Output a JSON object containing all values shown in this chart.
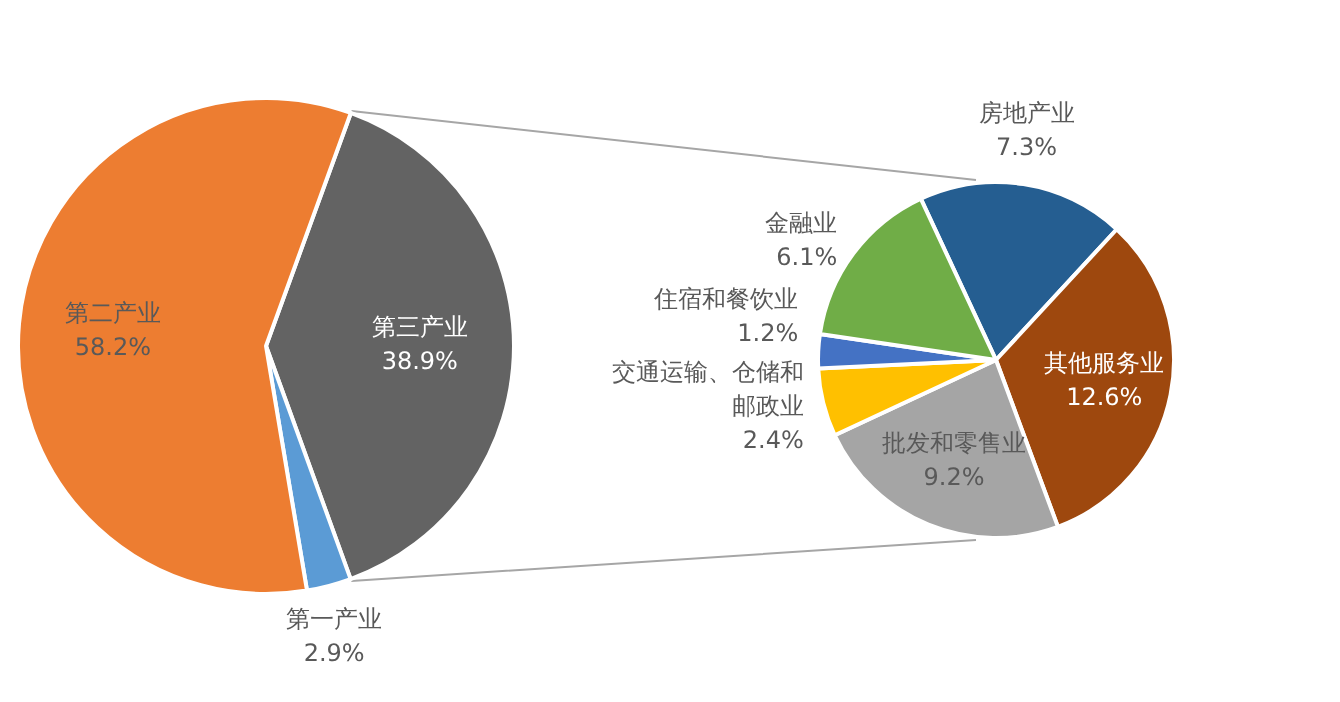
{
  "chart_data": [
    {
      "type": "pie",
      "categories": [
        "第三产业",
        "第一产业",
        "第二产业"
      ],
      "values": [
        38.9,
        2.9,
        58.2
      ],
      "colors": [
        "#636363",
        "#5b9bd5",
        "#ed7d31"
      ],
      "value_labels": [
        "38.9%",
        "2.9%",
        "58.2%"
      ]
    },
    {
      "type": "pie",
      "categories": [
        "房地产业",
        "其他服务业",
        "批发和零售业",
        "交通运输、仓储和邮政业",
        "住宿和餐饮业",
        "金融业"
      ],
      "values": [
        7.3,
        12.6,
        9.2,
        2.4,
        1.2,
        6.1
      ],
      "colors": [
        "#255e91",
        "#9e480e",
        "#a5a5a5",
        "#ffc000",
        "#4472c4",
        "#70ad47"
      ],
      "value_labels": [
        "7.3%",
        "12.6%",
        "9.2%",
        "2.4%",
        "1.2%",
        "6.1%"
      ]
    }
  ]
}
